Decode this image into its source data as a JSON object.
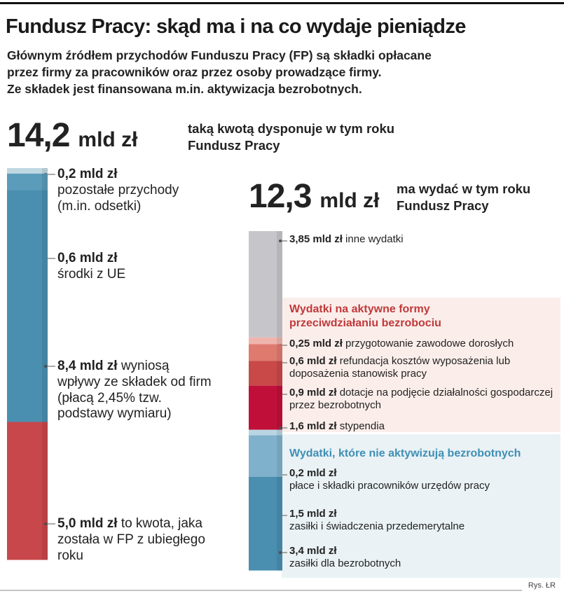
{
  "title": "Fundusz Pracy: skąd ma i na co wydaje pieniądze",
  "subtitle": [
    "Głównym źródłem przychodów Funduszu Pracy (FP) są składki opłacane",
    "przez firmy za pracowników oraz przez osoby prowadzące firmy.",
    "Ze składek jest finansowana m.in. aktywizacja bezrobotnych."
  ],
  "source": "Rys. ŁR",
  "chart_data": [
    {
      "type": "stacked-column",
      "total": {
        "value": 14.2,
        "label": "14,2"
      },
      "unit": "mld zł",
      "subtitle": "taką kwotą dysponuje w tym roku Fundusz Pracy",
      "series": [
        {
          "name": "pozostałe przychody (m.in. odsetki)",
          "color": "#bfd8e2",
          "values": [
            0.2
          ],
          "value_labels": [
            "0,2 mld zł"
          ]
        },
        {
          "name": "środki z UE",
          "color": "#5b9cba",
          "values": [
            0.6
          ],
          "value_labels": [
            "0,6 mld zł"
          ]
        },
        {
          "name": "wyniosą wpływy ze składek od firm (płacą 2,45% tzw. podstawy wymiaru)",
          "color": "#4a8fb0",
          "values": [
            8.4
          ],
          "value_labels": [
            "8,4 mld zł"
          ]
        },
        {
          "name": "to kwota, jaka została w FP z ubiegłego roku",
          "color": "#c8474a",
          "values": [
            5.0
          ],
          "value_labels": [
            "5,0 mld zł"
          ]
        }
      ]
    },
    {
      "type": "stacked-column",
      "total": {
        "value": 12.3,
        "label": "12,3"
      },
      "unit": "mld zł",
      "subtitle": "ma wydać w tym roku Fundusz Pracy",
      "annotations": [
        "Wydatki na aktywne formy przeciwdziałaniu bezrobociu",
        "Wydatki, które nie aktywizują bezrobotnych"
      ],
      "series": [
        {
          "name": "inne wydatki",
          "color": "#c6c6ca",
          "values": [
            3.85
          ],
          "value_labels": [
            "3,85 mld zł"
          ]
        },
        {
          "name": "przygotowanie zawodowe dorosłych",
          "color": "#efb5ad",
          "values": [
            0.25
          ],
          "value_labels": [
            "0,25 mld zł"
          ]
        },
        {
          "name": "refundacja kosztów wyposażenia lub doposażenia stanowisk pracy",
          "color": "#df7a6f",
          "values": [
            0.6
          ],
          "value_labels": [
            "0,6 mld zł"
          ]
        },
        {
          "name": "dotacje na podjęcie działalności gospodarczej przez bezrobotnych",
          "color": "#c94848",
          "values": [
            0.9
          ],
          "value_labels": [
            "0,9 mld zł"
          ]
        },
        {
          "name": "stypendia",
          "color": "#c0103a",
          "values": [
            1.6
          ],
          "value_labels": [
            "1,6 mld zł"
          ]
        },
        {
          "name": "płace i składki pracowników urzędów pracy",
          "color": "#b9d5e1",
          "values": [
            0.2
          ],
          "value_labels": [
            "0,2 mld zł"
          ]
        },
        {
          "name": "zasiłki i świadczenia przedemerytalne",
          "color": "#80b1cc",
          "values": [
            1.5
          ],
          "value_labels": [
            "1,5 mld zł"
          ]
        },
        {
          "name": "zasiłki dla bezrobotnych",
          "color": "#4a8fb0",
          "values": [
            3.4
          ],
          "value_labels": [
            "3,4 mld zł"
          ]
        }
      ]
    }
  ]
}
